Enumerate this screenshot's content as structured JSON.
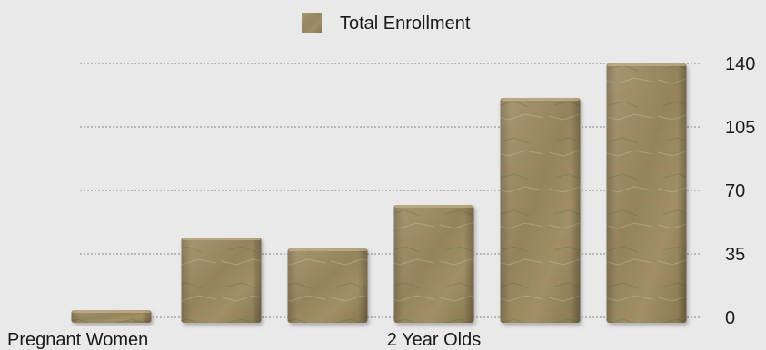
{
  "chart_data": {
    "type": "bar",
    "legend": {
      "label": "Total Enrollment",
      "position": "top-center"
    },
    "categories": [
      "Pregnant Women",
      "",
      "",
      "2 Year Olds",
      "",
      ""
    ],
    "series": [
      {
        "name": "Total Enrollment",
        "values": [
          4,
          44,
          38,
          62,
          121,
          140
        ]
      }
    ],
    "y_ticks": [
      0,
      35,
      70,
      105,
      140
    ],
    "ylim": [
      0,
      140
    ],
    "y_axis_side": "right",
    "grid": true,
    "colors": {
      "bar": "#9a8a62",
      "bar_dark": "#6f6043",
      "bar_light": "#b4a57c",
      "accent": "#c4744a",
      "grid": "#9a9a9a",
      "background": "#e9e9e9"
    }
  }
}
